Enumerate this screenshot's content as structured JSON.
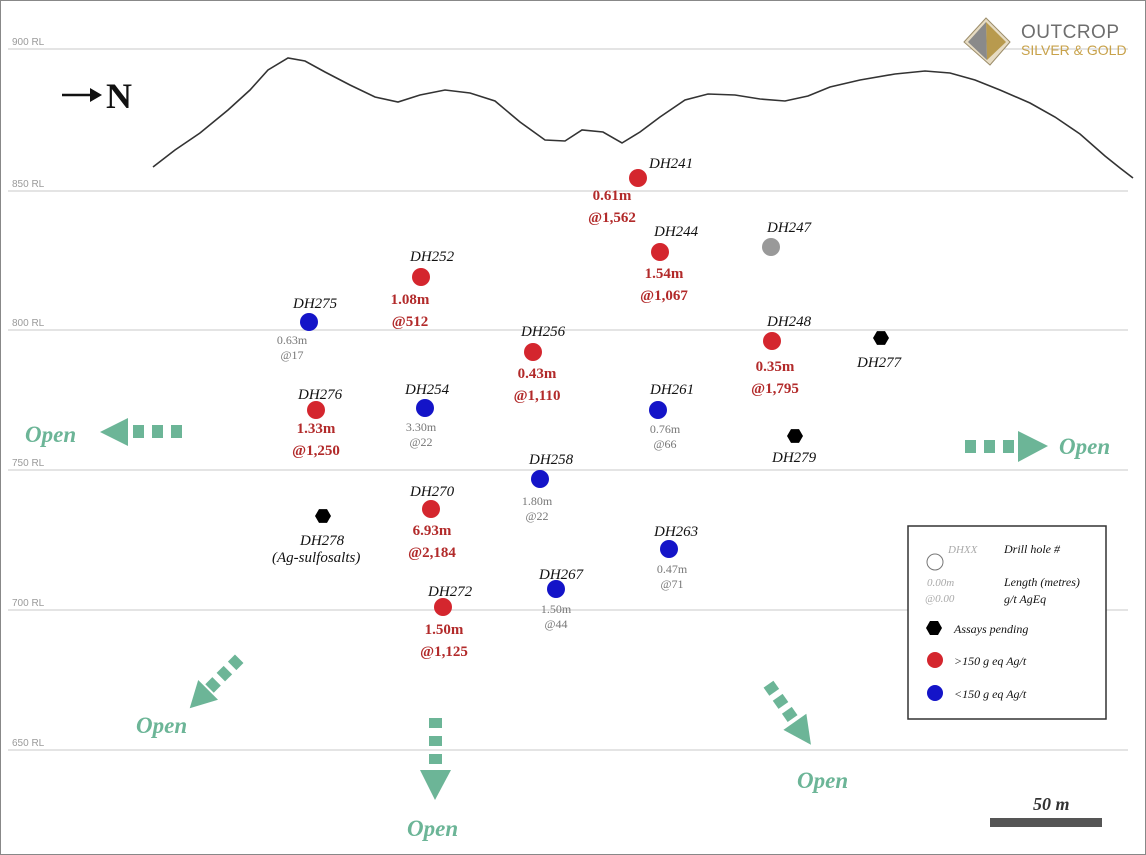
{
  "logo": {
    "line1": "OUTCROP",
    "line2": "SILVER & GOLD"
  },
  "north": {
    "label": "N"
  },
  "levels": [
    {
      "label": "900 RL"
    },
    {
      "label": "850 RL"
    },
    {
      "label": "800 RL"
    },
    {
      "label": "750 RL"
    },
    {
      "label": "700 RL"
    },
    {
      "label": "650 RL"
    }
  ],
  "holes": [
    {
      "id": "DH241",
      "status": "high",
      "length": "0.61m",
      "grade": "@1,562"
    },
    {
      "id": "DH244",
      "status": "high",
      "length": "1.54m",
      "grade": "@1,067"
    },
    {
      "id": "DH247",
      "status": "grey",
      "length": "",
      "grade": ""
    },
    {
      "id": "DH252",
      "status": "high",
      "length": "1.08m",
      "grade": "@512"
    },
    {
      "id": "DH275",
      "status": "low",
      "length": "0.63m",
      "grade": "@17"
    },
    {
      "id": "DH256",
      "status": "high",
      "length": "0.43m",
      "grade": "@1,110"
    },
    {
      "id": "DH248",
      "status": "high",
      "length": "0.35m",
      "grade": "@1,795"
    },
    {
      "id": "DH277",
      "status": "pending",
      "length": "",
      "grade": ""
    },
    {
      "id": "DH276",
      "status": "high",
      "length": "1.33m",
      "grade": "@1,250"
    },
    {
      "id": "DH254",
      "status": "low",
      "length": "3.30m",
      "grade": "@22"
    },
    {
      "id": "DH261",
      "status": "low",
      "length": "0.76m",
      "grade": "@66"
    },
    {
      "id": "DH279",
      "status": "pending",
      "length": "",
      "grade": ""
    },
    {
      "id": "DH258",
      "status": "low",
      "length": "1.80m",
      "grade": "@22"
    },
    {
      "id": "DH270",
      "status": "high",
      "length": "6.93m",
      "grade": "@2,184"
    },
    {
      "id": "DH278",
      "status": "pending",
      "length": "",
      "grade": "",
      "note": "(Ag-sulfosalts)"
    },
    {
      "id": "DH263",
      "status": "low",
      "length": "0.47m",
      "grade": "@71"
    },
    {
      "id": "DH267",
      "status": "low",
      "length": "1.50m",
      "grade": "@44"
    },
    {
      "id": "DH272",
      "status": "high",
      "length": "1.50m",
      "grade": "@1,125"
    }
  ],
  "open_labels": {
    "west": "Open",
    "east": "Open",
    "southwest": "Open",
    "south": "Open",
    "southeast": "Open"
  },
  "legend": {
    "hole_placeholder": "DHXX",
    "hole_desc": "Drill hole #",
    "len_placeholder": "0.00m",
    "len_desc": "Length (metres)",
    "grade_placeholder": "@0.00",
    "grade_desc": "g/t AgEq",
    "pending": "Assays pending",
    "high": ">150 g eq Ag/t",
    "low": "<150 g eq Ag/t"
  },
  "scale_bar": {
    "label": "50 m"
  },
  "colors": {
    "high": "#d4262e",
    "low": "#1414c8",
    "grey": "#999999",
    "pending": "#000000",
    "open_arrow": "#6cb597"
  }
}
